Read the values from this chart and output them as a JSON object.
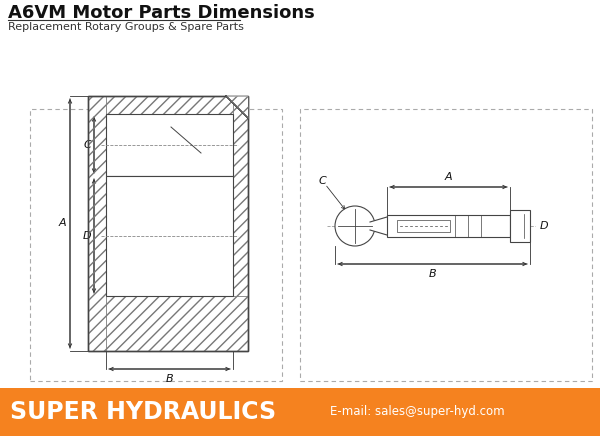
{
  "title": "A6VM Motor Parts Dimensions",
  "subtitle": "Replacement Rotary Groups & Spare Parts",
  "title_fontsize": 13,
  "subtitle_fontsize": 8,
  "footer_text": "SUPER HYDRAULICS",
  "footer_email": "E-mail: sales@super-hyd.com",
  "footer_bg": "#F5821F",
  "footer_text_color": "#FFFFFF",
  "bg_color": "#FFFFFF",
  "border_color": "#aaaaaa",
  "line_color": "#444444",
  "hatch_color": "#777777",
  "dim_color": "#333333"
}
